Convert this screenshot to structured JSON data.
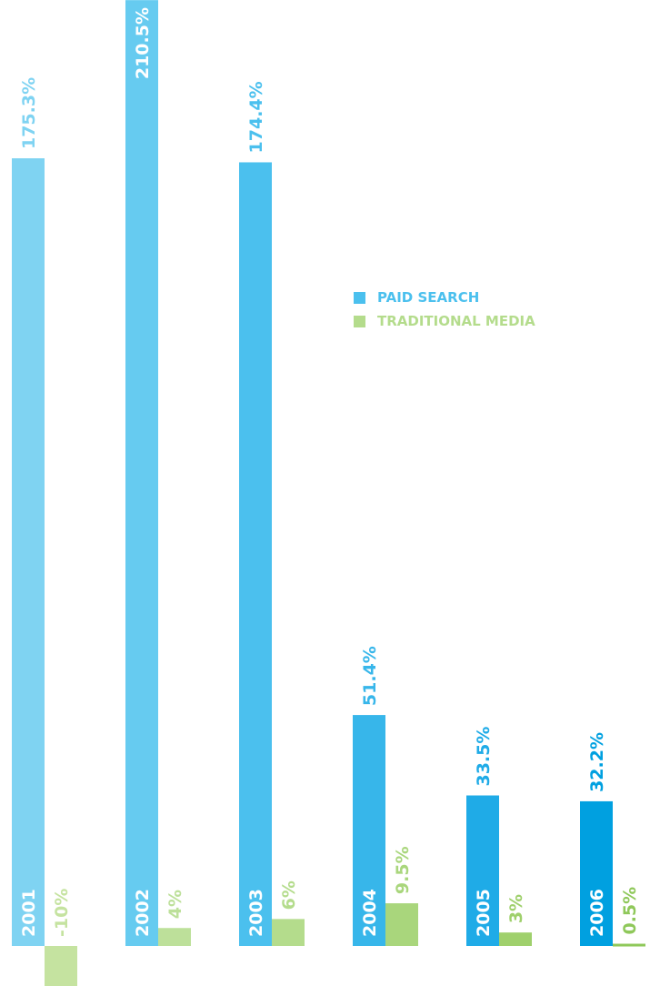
{
  "chart_data": {
    "type": "bar",
    "categories": [
      "2001",
      "2002",
      "2003",
      "2004",
      "2005",
      "2006"
    ],
    "series": [
      {
        "name": "PAID SEARCH",
        "values": [
          175.3,
          210.5,
          174.4,
          51.4,
          33.5,
          32.2
        ],
        "labels": [
          "175.3%",
          "210.5%",
          "174.4%",
          "51.4%",
          "33.5%",
          "32.2%"
        ],
        "colors": [
          "#7fd3f2",
          "#66cbf0",
          "#4bc0ee",
          "#37b6ea",
          "#1fabe7",
          "#00a0e0"
        ],
        "label_colors": [
          "#7fd3f2",
          "#ffffff",
          "#4bc0ee",
          "#37b6ea",
          "#1fabe7",
          "#00a0e0"
        ]
      },
      {
        "name": "TRADITIONAL MEDIA",
        "values": [
          -10,
          4,
          6,
          9.5,
          3,
          0.5
        ],
        "labels": [
          "-10%",
          "4%",
          "6%",
          "9.5%",
          "3%",
          "0.5%"
        ],
        "colors": [
          "#c5e3a0",
          "#bde09a",
          "#b4dc8c",
          "#a9d67c",
          "#9fd06c",
          "#8fc85a"
        ]
      }
    ],
    "ylim": [
      -10,
      210.5
    ],
    "grid": false,
    "legend_placement": "center-right",
    "legend_colors": [
      "#4bc0ee",
      "#b4dc8c"
    ],
    "label_orientation": "vertical"
  }
}
